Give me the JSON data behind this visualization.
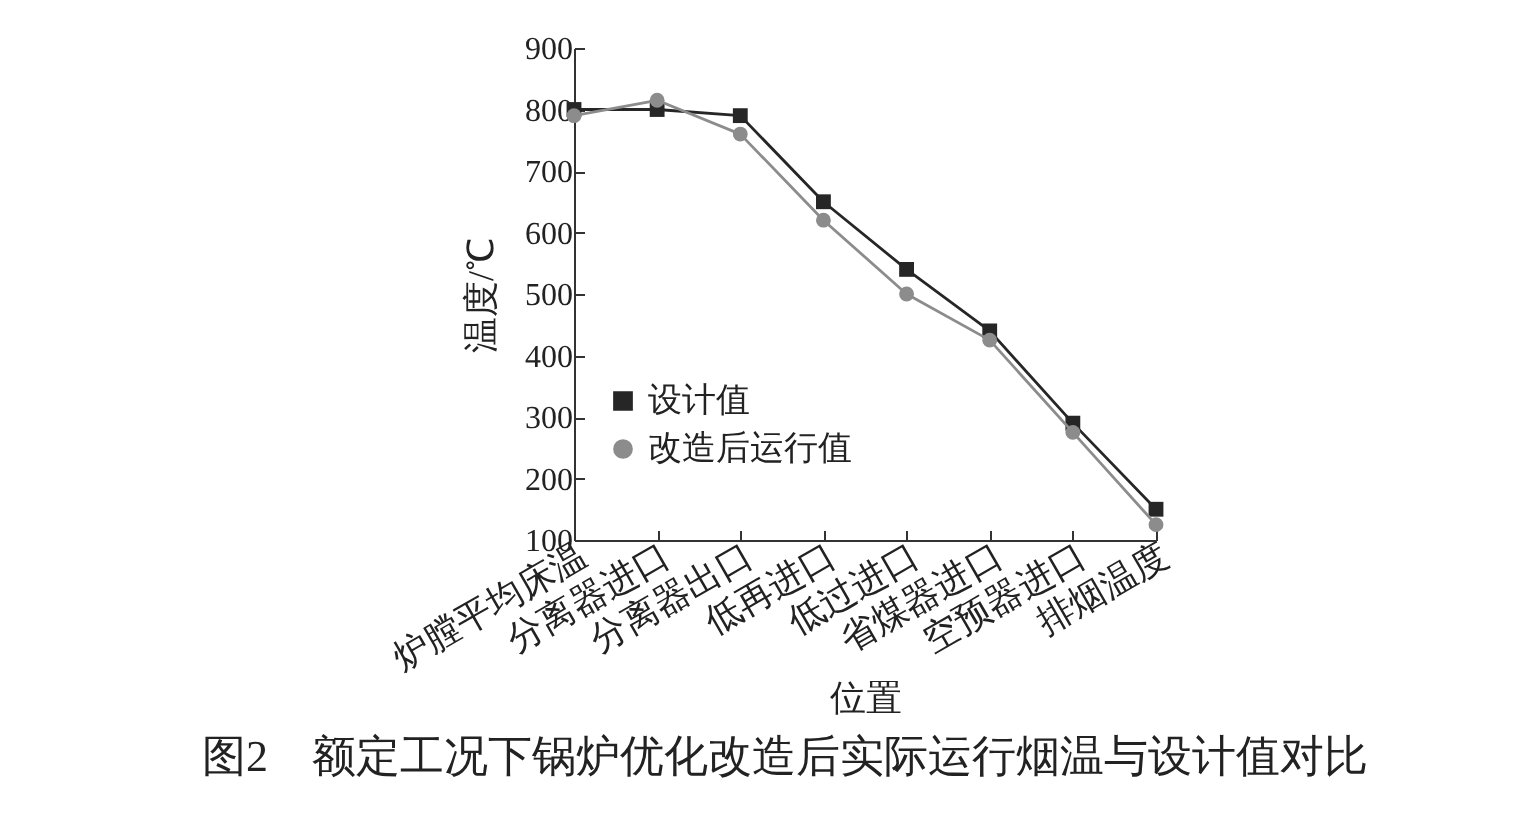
{
  "chart_data": {
    "type": "line",
    "title": "图2　额定工况下锅炉优化改造后实际运行烟温与设计值对比",
    "xlabel": "位置",
    "ylabel": "温度/℃",
    "categories": [
      "炉膛平均床温",
      "分离器进口",
      "分离器出口",
      "低再进口",
      "低过进口",
      "省煤器进口",
      "空预器进口",
      "排烟温度"
    ],
    "series": [
      {
        "name": "设计值",
        "color": "#262626",
        "marker": "square",
        "values": [
          800,
          800,
          790,
          650,
          540,
          440,
          290,
          150
        ]
      },
      {
        "name": "改造后运行值",
        "color": "#8c8c8c",
        "marker": "circle",
        "values": [
          790,
          815,
          760,
          620,
          500,
          425,
          275,
          125
        ]
      }
    ],
    "ylim": [
      100,
      900
    ],
    "yticks": [
      100,
      200,
      300,
      400,
      500,
      600,
      700,
      800,
      900
    ],
    "grid": false,
    "legend": "bottom left"
  }
}
